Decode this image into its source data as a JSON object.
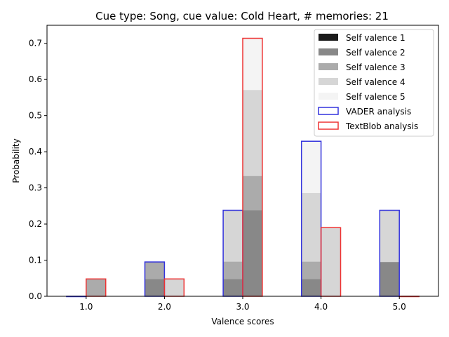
{
  "chart_data": {
    "type": "bar",
    "title": "Cue type: Song, cue value: Cold Heart, # memories: 21",
    "xlabel": "Valence scores",
    "ylabel": "Probability",
    "x_ticks": [
      "1.0",
      "2.0",
      "3.0",
      "4.0",
      "5.0"
    ],
    "y_ticks": [
      "0.0",
      "0.1",
      "0.2",
      "0.3",
      "0.4",
      "0.5",
      "0.6",
      "0.7"
    ],
    "xlim": [
      0.5,
      5.5
    ],
    "ylim": [
      0,
      0.75
    ],
    "categories": [
      1,
      2,
      3,
      4,
      5
    ],
    "legend_position": "top-right",
    "grid": false,
    "series": [
      {
        "name": "Self valence 1",
        "kind": "stacked",
        "color": "#1a1a1a",
        "values": [
          0,
          0,
          0,
          0,
          0
        ]
      },
      {
        "name": "Self valence 2",
        "kind": "stacked",
        "color": "#888888",
        "values": [
          0,
          0.048,
          0.048,
          0.048,
          0.095
        ]
      },
      {
        "name": "Self valence 3",
        "kind": "stacked",
        "color": "#ababab",
        "values": [
          0,
          0.048,
          0.048,
          0.048,
          0
        ]
      },
      {
        "name": "Self valence 4",
        "kind": "stacked",
        "color": "#d6d6d6",
        "values": [
          0,
          0,
          0.143,
          0.19,
          0.143
        ]
      },
      {
        "name": "Self valence 5",
        "kind": "stacked",
        "color": "#f4f4f4",
        "values": [
          0,
          0,
          0,
          0.143,
          0
        ]
      },
      {
        "name": "VADER analysis",
        "kind": "outline",
        "color": "#3333dd",
        "values": [
          0,
          0.095,
          0.238,
          0.429,
          0.238
        ]
      },
      {
        "name": "TextBlob analysis",
        "kind": "outline",
        "color": "#ee3333",
        "values": [
          0.048,
          0.048,
          0.714,
          0.19,
          0
        ]
      }
    ],
    "textblob_stack": [
      {
        "x": 1,
        "fills": [
          {
            "color": "#ababab",
            "value": 0.048
          }
        ]
      },
      {
        "x": 2,
        "fills": [
          {
            "color": "#d6d6d6",
            "value": 0.048
          }
        ]
      },
      {
        "x": 3,
        "fills": [
          {
            "color": "#888888",
            "value": 0.238
          },
          {
            "color": "#ababab",
            "value": 0.095
          },
          {
            "color": "#d6d6d6",
            "value": 0.238
          },
          {
            "color": "#f4f4f4",
            "value": 0.143
          }
        ]
      },
      {
        "x": 4,
        "fills": [
          {
            "color": "#d6d6d6",
            "value": 0.19
          }
        ]
      },
      {
        "x": 5,
        "fills": []
      }
    ]
  }
}
